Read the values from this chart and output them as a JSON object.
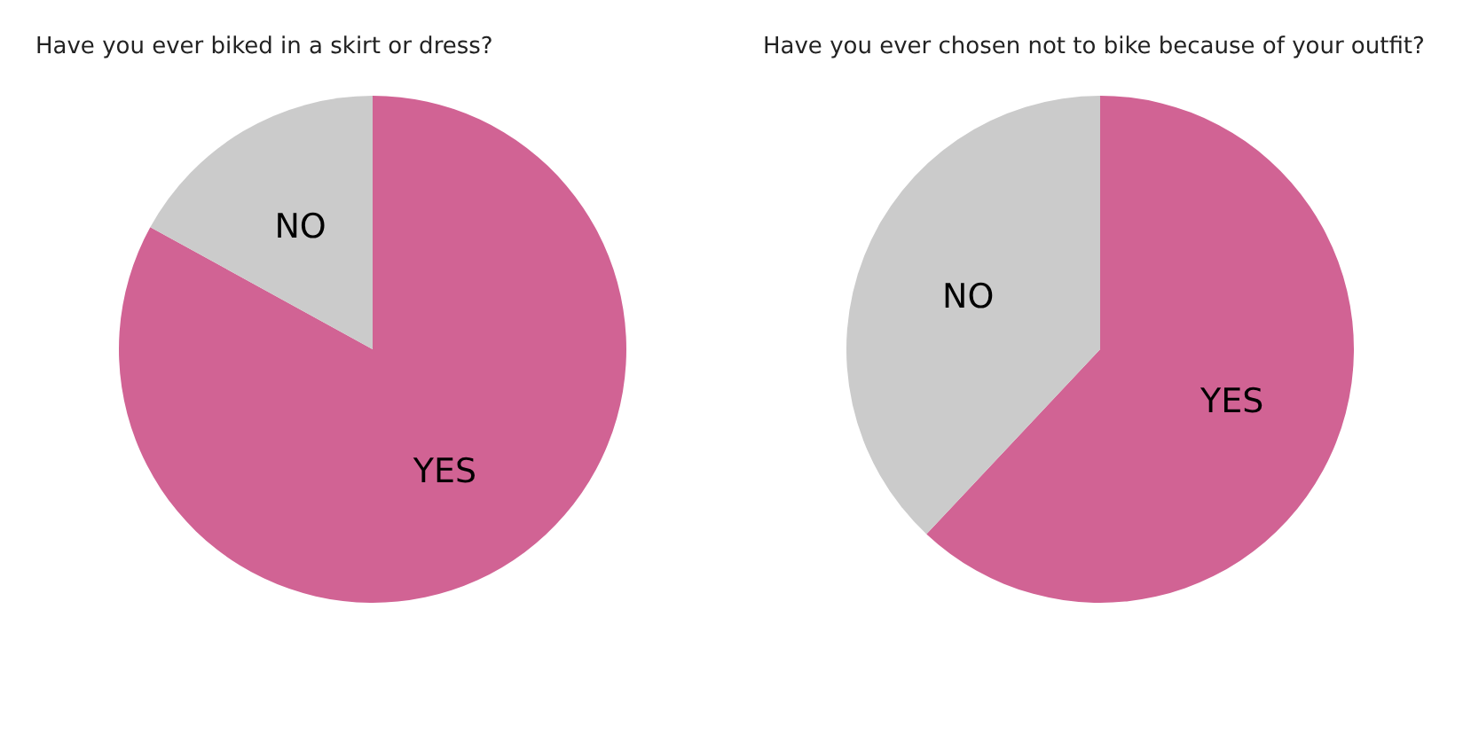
{
  "chart_data": [
    {
      "type": "pie",
      "title": "Have you ever biked in a skirt or dress?",
      "categories": [
        "YES",
        "NO"
      ],
      "values": [
        83,
        17
      ],
      "colors": [
        "#d16394",
        "#cbcbcb"
      ]
    },
    {
      "type": "pie",
      "title": "Have you ever chosen not to bike because of your outfit?",
      "categories": [
        "YES",
        "NO"
      ],
      "values": [
        62,
        38
      ],
      "colors": [
        "#d16394",
        "#cbcbcb"
      ]
    }
  ]
}
